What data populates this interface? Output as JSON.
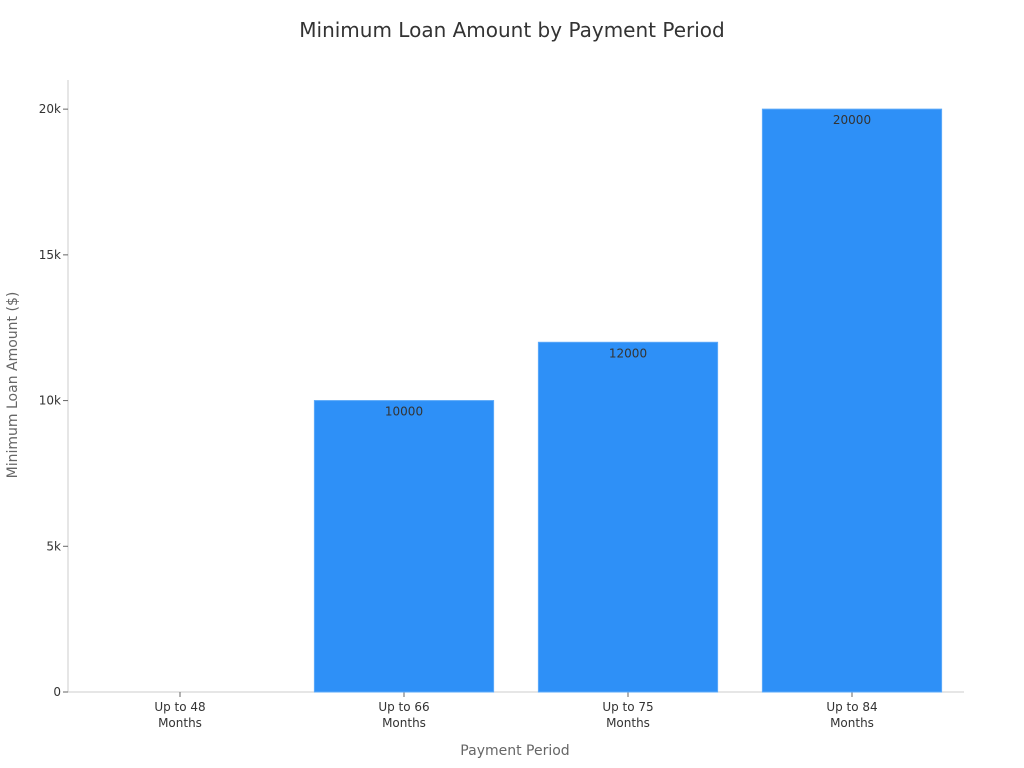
{
  "chart_data": {
    "type": "bar",
    "title": "Minimum Loan Amount by Payment Period",
    "xlabel": "Payment Period",
    "ylabel": "Minimum Loan Amount ($)",
    "categories": [
      [
        "Up to 48",
        "Months"
      ],
      [
        "Up to 66",
        "Months"
      ],
      [
        "Up to 75",
        "Months"
      ],
      [
        "Up to 84",
        "Months"
      ]
    ],
    "values": [
      0,
      10000,
      12000,
      20000
    ],
    "data_labels": [
      "",
      "10000",
      "12000",
      "20000"
    ],
    "ylim": [
      0,
      21000
    ],
    "yticks": [
      0,
      5000,
      10000,
      15000,
      20000
    ],
    "ytick_labels": [
      "0",
      "5k",
      "10k",
      "15k",
      "20k"
    ],
    "grid": false,
    "colors": {
      "bar": "#2e90f7",
      "bar_edge": "#5aa8f9",
      "axis": "#cccccc"
    }
  }
}
